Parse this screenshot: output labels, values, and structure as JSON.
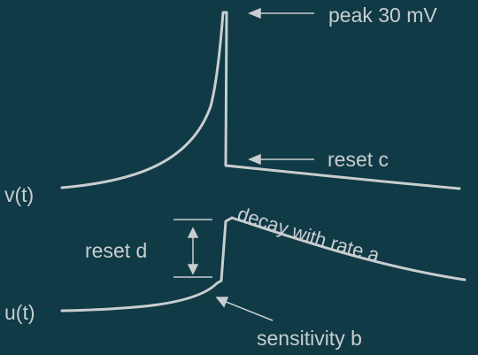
{
  "colors": {
    "background": "#0f3a46",
    "foreground": "#c9cdcf"
  },
  "labels": {
    "v_trace": "v(t)",
    "u_trace": "u(t)",
    "peak": "peak 30 mV",
    "reset_c": "reset  c",
    "reset_d": "reset  d",
    "decay": "decay with  rate  a",
    "sensitivity": "sensitivity  b"
  }
}
